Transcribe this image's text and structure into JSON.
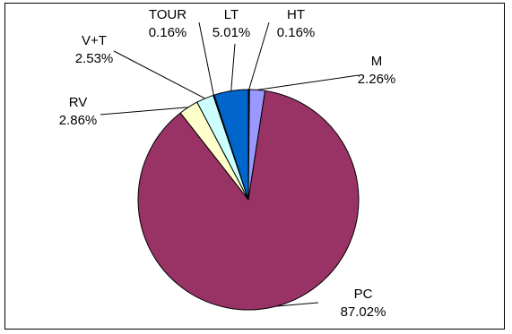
{
  "chart_data": {
    "type": "pie",
    "title": "",
    "slices": [
      {
        "label": "HT",
        "value": 0.16,
        "display": "0.16%",
        "color": "#000000"
      },
      {
        "label": "M",
        "value": 2.26,
        "display": "2.26%",
        "color": "#9999ff"
      },
      {
        "label": "PC",
        "value": 87.02,
        "display": "87.02%",
        "color": "#993366"
      },
      {
        "label": "RV",
        "value": 2.86,
        "display": "2.86%",
        "color": "#ffffcc"
      },
      {
        "label": "V+T",
        "value": 2.53,
        "display": "2.53%",
        "color": "#ccffff"
      },
      {
        "label": "TOUR",
        "value": 0.16,
        "display": "0.16%",
        "color": "#660066"
      },
      {
        "label": "LT",
        "value": 5.01,
        "display": "5.01%",
        "color": "#0066cc"
      }
    ],
    "start_angle": "12 o'clock",
    "direction": "clockwise",
    "legend": "none",
    "labels": "outside with leader lines"
  }
}
